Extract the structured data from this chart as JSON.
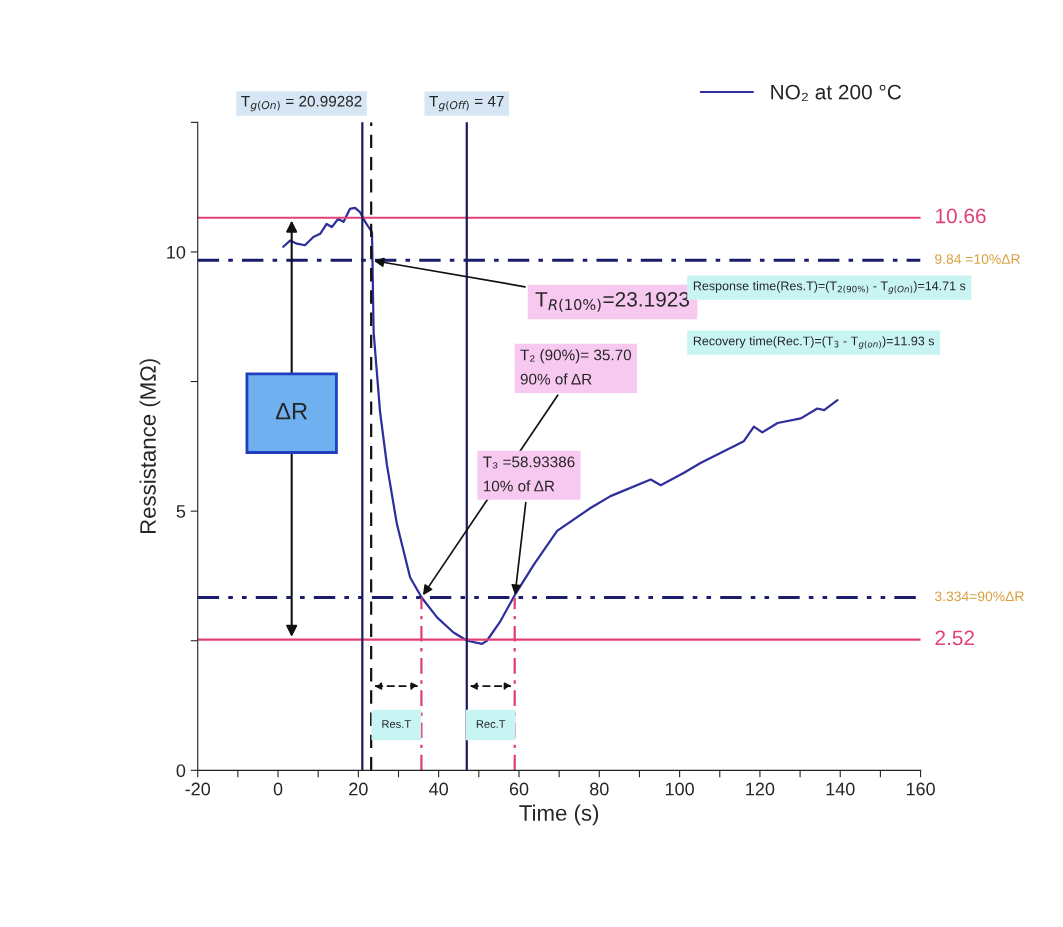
{
  "chart_data": {
    "type": "line",
    "xlabel": "Time (s)",
    "ylabel": "Ressistance (MΩ)",
    "xlim": [
      -20,
      160
    ],
    "ylim": [
      0,
      12.5
    ],
    "xticks": [
      -20,
      {
        "value": -10,
        "label": null
      },
      0,
      {
        "value": 10,
        "label": null
      },
      20,
      {
        "value": 30,
        "label": null
      },
      40,
      {
        "value": 50,
        "label": null
      },
      60,
      {
        "value": 70,
        "label": null
      },
      80,
      {
        "value": 90,
        "label": null
      },
      100,
      {
        "value": 110,
        "label": null
      },
      120,
      {
        "value": 130,
        "label": null
      },
      140,
      {
        "value": 150,
        "label": null
      },
      160
    ],
    "yticks": [
      0,
      {
        "value": 2.5,
        "label": null
      },
      5,
      {
        "value": 7.5,
        "label": null
      },
      10,
      {
        "value": 12.5,
        "label": null
      }
    ],
    "grid": false,
    "legend": "top right",
    "series": [
      {
        "name": "NO₂ at 200 °C",
        "color": "#2e2e9c",
        "line_style": "solid",
        "x": [
          1.3,
          3.0,
          4.7,
          6.7,
          8.8,
          10.5,
          12.1,
          13.4,
          15.0,
          16.3,
          17.9,
          19.2,
          20.4,
          21.7,
          23.4,
          23.8,
          25.4,
          27.1,
          29.6,
          32.9,
          35.8,
          39.6,
          43.7,
          47.1,
          50.8,
          52.0,
          55.4,
          59.1,
          63.7,
          69.5,
          77.8,
          82.8,
          92.8,
          95.3,
          101.1,
          105.2,
          111.9,
          116.0,
          118.5,
          120.6,
          124.4,
          130.2,
          134.3,
          136.0,
          139.3
        ],
        "values": [
          10.1,
          10.22,
          10.16,
          10.13,
          10.29,
          10.35,
          10.54,
          10.48,
          10.64,
          10.58,
          10.83,
          10.85,
          10.77,
          10.58,
          10.38,
          8.46,
          6.92,
          5.9,
          4.75,
          3.72,
          3.33,
          2.95,
          2.66,
          2.5,
          2.44,
          2.5,
          2.88,
          3.4,
          3.97,
          4.62,
          5.06,
          5.29,
          5.61,
          5.5,
          5.74,
          5.93,
          6.19,
          6.35,
          6.63,
          6.52,
          6.7,
          6.79,
          6.98,
          6.95,
          7.14
        ]
      },
      {
        "color": "#e0407a",
        "line_style": "dashdot",
        "x": [
          35.7,
          35.7
        ],
        "values": [
          0,
          3.334
        ]
      },
      {
        "color": "#e0407a",
        "line_style": "dashdot",
        "x": [
          58.93386,
          58.93386
        ],
        "values": [
          0,
          3.334
        ]
      }
    ],
    "ref_lines": [
      {
        "axis": "y",
        "value": 10.66,
        "label": "10.66",
        "color": "#e0407a",
        "line_style": "solid"
      },
      {
        "axis": "y",
        "value": 9.84,
        "label": "9.84 =10%ΔR",
        "color": "#1c1c6c",
        "line_style": "dashdot"
      },
      {
        "axis": "y",
        "value": 3.334,
        "label": "3.334=90%ΔR",
        "color": "#1c1c6c",
        "line_style": "dashdotdot"
      },
      {
        "axis": "y",
        "value": 2.52,
        "label": "2.52",
        "color": "#e0407a",
        "line_style": "solid"
      },
      {
        "axis": "x",
        "value": 20.99282,
        "label": "T$_{g(On)}$ = 20.99282",
        "color": "#1c1c5c",
        "line_style": "solid"
      },
      {
        "axis": "x",
        "value": 47,
        "label": "T$_{g(Off)}$ = 47",
        "color": "#1c1c5c",
        "line_style": "solid"
      },
      {
        "axis": "x",
        "value": 23.1923,
        "color": "#111111",
        "line_style": "dashed"
      }
    ],
    "annotations": [
      {
        "text": "T$_{R(10%)}$=23.1923",
        "x": 23.1923,
        "y": 9.84
      },
      {
        "text": "T₂ (90%)= 35.70\n90% of ΔR",
        "x": 35.7,
        "y": 3.334
      },
      {
        "text": "T₃ =58.93386\n10% of ΔR",
        "x": 58.93386,
        "y": 3.334
      },
      "Response time(Res.T)=(T$_{2(90%)}$ - T$_{g(On)}$)=14.71 s",
      "Recovery time(Rec.T)=(T$_{3}$ - T$_{g(on)}$)=11.93 s",
      "Res.T",
      "Rec.T",
      "ΔR"
    ]
  }
}
